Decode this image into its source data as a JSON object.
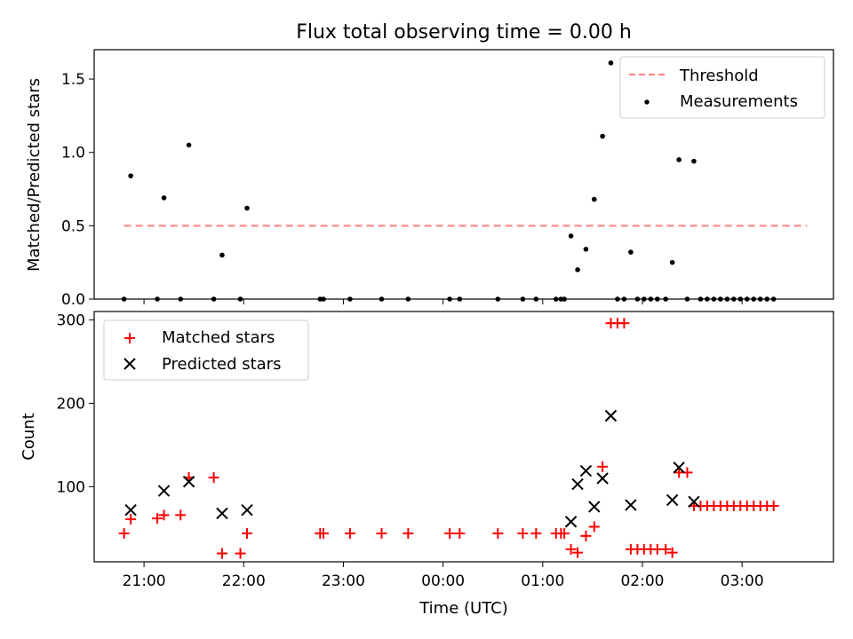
{
  "figure": {
    "title": "Flux total observing time = 0.00 h",
    "xlabel": "Time (UTC)",
    "xticks": [
      "21:00",
      "22:00",
      "23:00",
      "00:00",
      "01:00",
      "02:00",
      "03:00"
    ]
  },
  "chart_data": [
    {
      "type": "scatter",
      "title": "Flux total observing time = 0.00 h",
      "ylabel": "Matched/Predicted stars",
      "ylim": [
        0,
        1.7
      ],
      "xlim": [
        "20:30",
        "03:55"
      ],
      "yticks": [
        "0.0",
        "0.5",
        "1.0",
        "1.5"
      ],
      "legend_position": "upper right",
      "threshold": {
        "name": "Threshold",
        "value": 0.5,
        "x_from": "20:48",
        "x_to": "03:39",
        "color": "#ff7f7f",
        "style": "dashed"
      },
      "series": [
        {
          "name": "Measurements",
          "color": "#000000",
          "marker": "dot",
          "points": [
            [
              "20:48",
              0.0
            ],
            [
              "20:52",
              0.84
            ],
            [
              "21:08",
              0.0
            ],
            [
              "21:12",
              0.69
            ],
            [
              "21:22",
              0.0
            ],
            [
              "21:27",
              1.05
            ],
            [
              "21:42",
              0.0
            ],
            [
              "21:47",
              0.3
            ],
            [
              "21:58",
              0.0
            ],
            [
              "22:02",
              0.62
            ],
            [
              "22:46",
              0.0
            ],
            [
              "22:48",
              0.0
            ],
            [
              "23:04",
              0.0
            ],
            [
              "23:23",
              0.0
            ],
            [
              "23:39",
              0.0
            ],
            [
              "00:04",
              0.0
            ],
            [
              "00:10",
              0.0
            ],
            [
              "00:33",
              0.0
            ],
            [
              "00:48",
              0.0
            ],
            [
              "00:56",
              0.0
            ],
            [
              "01:08",
              0.0
            ],
            [
              "01:11",
              0.0
            ],
            [
              "01:13",
              0.0
            ],
            [
              "01:17",
              0.43
            ],
            [
              "01:21",
              0.2
            ],
            [
              "01:26",
              0.34
            ],
            [
              "01:31",
              0.68
            ],
            [
              "01:36",
              1.11
            ],
            [
              "01:41",
              1.61
            ],
            [
              "01:45",
              0.0
            ],
            [
              "01:49",
              0.0
            ],
            [
              "01:53",
              0.32
            ],
            [
              "01:57",
              0.0
            ],
            [
              "02:01",
              0.0
            ],
            [
              "02:05",
              0.0
            ],
            [
              "02:09",
              0.0
            ],
            [
              "02:14",
              0.0
            ],
            [
              "02:18",
              0.25
            ],
            [
              "02:22",
              0.95
            ],
            [
              "02:27",
              0.0
            ],
            [
              "02:31",
              0.94
            ],
            [
              "02:35",
              0.0
            ],
            [
              "02:39",
              0.0
            ],
            [
              "02:43",
              0.0
            ],
            [
              "02:47",
              0.0
            ],
            [
              "02:51",
              0.0
            ],
            [
              "02:55",
              0.0
            ],
            [
              "02:59",
              0.0
            ],
            [
              "03:03",
              0.0
            ],
            [
              "03:07",
              0.0
            ],
            [
              "03:11",
              0.0
            ],
            [
              "03:15",
              0.0
            ],
            [
              "03:19",
              0.0
            ]
          ]
        }
      ]
    },
    {
      "type": "scatter",
      "title": "",
      "ylabel": "Count",
      "ylim": [
        10,
        310
      ],
      "xlim": [
        "20:30",
        "03:55"
      ],
      "yticks": [
        "100",
        "200",
        "300"
      ],
      "legend_position": "upper left",
      "series": [
        {
          "name": "Matched stars",
          "color": "#ff0000",
          "marker": "plus",
          "points": [
            [
              "20:48",
              44
            ],
            [
              "20:52",
              61
            ],
            [
              "21:08",
              62
            ],
            [
              "21:12",
              66
            ],
            [
              "21:22",
              66
            ],
            [
              "21:27",
              111
            ],
            [
              "21:42",
              111
            ],
            [
              "21:47",
              20
            ],
            [
              "21:58",
              20
            ],
            [
              "22:02",
              44
            ],
            [
              "22:46",
              44
            ],
            [
              "22:48",
              44
            ],
            [
              "23:04",
              44
            ],
            [
              "23:23",
              44
            ],
            [
              "23:39",
              44
            ],
            [
              "00:04",
              44
            ],
            [
              "00:10",
              44
            ],
            [
              "00:33",
              44
            ],
            [
              "00:48",
              44
            ],
            [
              "00:56",
              44
            ],
            [
              "01:08",
              44
            ],
            [
              "01:11",
              44
            ],
            [
              "01:13",
              44
            ],
            [
              "01:17",
              25
            ],
            [
              "01:21",
              21
            ],
            [
              "01:26",
              41
            ],
            [
              "01:31",
              52
            ],
            [
              "01:36",
              124
            ],
            [
              "01:41",
              296
            ],
            [
              "01:45",
              296
            ],
            [
              "01:49",
              296
            ],
            [
              "01:53",
              25
            ],
            [
              "01:57",
              25
            ],
            [
              "02:01",
              25
            ],
            [
              "02:05",
              25
            ],
            [
              "02:09",
              25
            ],
            [
              "02:14",
              25
            ],
            [
              "02:18",
              21
            ],
            [
              "02:22",
              117
            ],
            [
              "02:27",
              117
            ],
            [
              "02:31",
              77
            ],
            [
              "02:35",
              77
            ],
            [
              "02:39",
              77
            ],
            [
              "02:43",
              77
            ],
            [
              "02:47",
              77
            ],
            [
              "02:51",
              77
            ],
            [
              "02:55",
              77
            ],
            [
              "02:59",
              77
            ],
            [
              "03:03",
              77
            ],
            [
              "03:07",
              77
            ],
            [
              "03:11",
              77
            ],
            [
              "03:15",
              77
            ],
            [
              "03:19",
              77
            ]
          ]
        },
        {
          "name": "Predicted stars",
          "color": "#000000",
          "marker": "x",
          "points": [
            [
              "20:52",
              72
            ],
            [
              "21:12",
              95
            ],
            [
              "21:27",
              106
            ],
            [
              "21:47",
              68
            ],
            [
              "22:02",
              72
            ],
            [
              "01:17",
              58
            ],
            [
              "01:21",
              103
            ],
            [
              "01:26",
              119
            ],
            [
              "01:31",
              76
            ],
            [
              "01:36",
              110
            ],
            [
              "01:41",
              185
            ],
            [
              "01:53",
              78
            ],
            [
              "02:18",
              84
            ],
            [
              "02:22",
              123
            ],
            [
              "02:31",
              82
            ]
          ]
        }
      ]
    }
  ]
}
